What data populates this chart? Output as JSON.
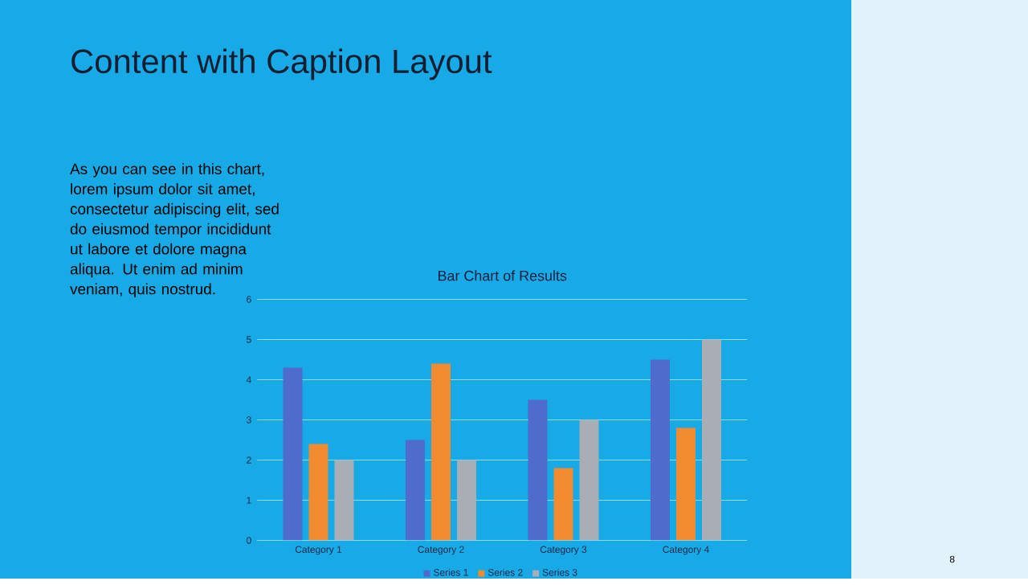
{
  "chart_data": {
    "type": "bar",
    "title": "Bar Chart of Results",
    "categories": [
      "Category 1",
      "Category 2",
      "Category 3",
      "Category 4"
    ],
    "series": [
      {
        "name": "Series 1",
        "color": "#4f6bcc",
        "values": [
          4.3,
          2.5,
          3.5,
          4.5
        ]
      },
      {
        "name": "Series 2",
        "color": "#f28a30",
        "values": [
          2.4,
          4.4,
          1.8,
          2.8
        ]
      },
      {
        "name": "Series 3",
        "color": "#a9aeb4",
        "values": [
          2,
          2,
          3,
          5
        ]
      }
    ],
    "ylim": [
      0,
      6
    ],
    "yticks": [
      0,
      1,
      2,
      3,
      4,
      5,
      6
    ],
    "grid": "y",
    "legend": "bottom",
    "annotations": [
      "Content with Caption Layout",
      "As you can see in this chart, lorem ipsum dolor sit amet, consectetur adipiscing elit, sed do eiusmod tempor incididunt ut labore et dolore magna aliqua. Ut enim ad minim veniam, quis nostrud.",
      "8"
    ]
  }
}
